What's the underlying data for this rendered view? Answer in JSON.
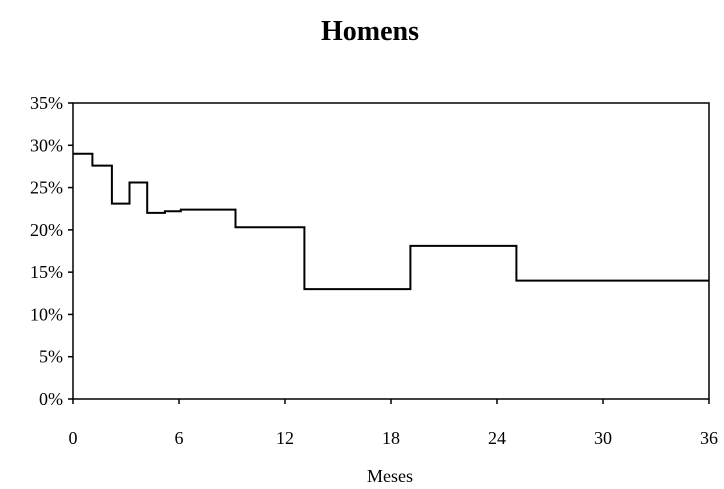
{
  "chart_data": {
    "type": "line",
    "step": true,
    "title": "Homens",
    "xlabel": "Meses",
    "ylabel": "",
    "xlim": [
      0,
      36
    ],
    "ylim": [
      0,
      35
    ],
    "x_ticks": [
      0,
      6,
      12,
      18,
      24,
      30,
      36
    ],
    "y_ticks": [
      0,
      5,
      10,
      15,
      20,
      25,
      30,
      35
    ],
    "y_tick_labels": [
      "0%",
      "5%",
      "10%",
      "15%",
      "20%",
      "25%",
      "30%",
      "35%"
    ],
    "grid": false,
    "legend": false,
    "line_color": "#000000",
    "series": [
      {
        "x": [
          0,
          1.1,
          2.2,
          3.2,
          4.2,
          5.2,
          6.1,
          9.2,
          13.1,
          19.1,
          25.1,
          36
        ],
        "y": [
          29.0,
          27.6,
          23.1,
          25.6,
          22.0,
          22.2,
          22.4,
          20.3,
          13.0,
          18.1,
          14.0,
          14.0
        ]
      }
    ]
  }
}
